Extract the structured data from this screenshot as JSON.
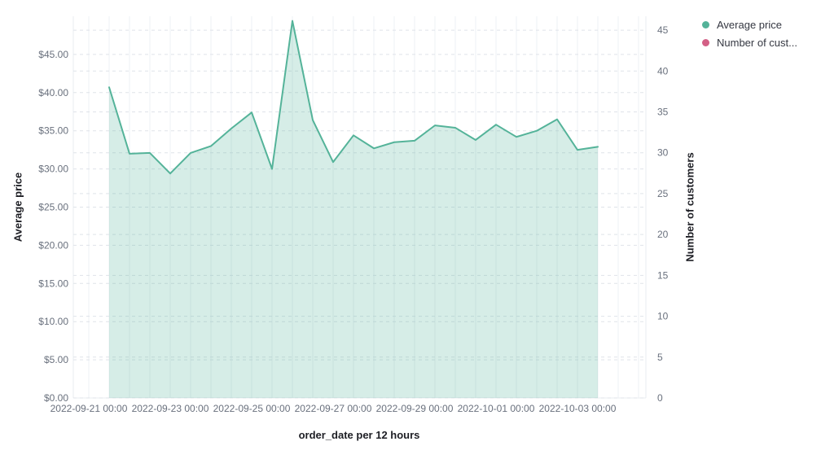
{
  "chart_data": {
    "type": "area",
    "title": "",
    "x": [
      "2022-09-21 12:00",
      "2022-09-22 00:00",
      "2022-09-22 12:00",
      "2022-09-23 00:00",
      "2022-09-23 12:00",
      "2022-09-24 00:00",
      "2022-09-24 12:00",
      "2022-09-25 00:00",
      "2022-09-25 12:00",
      "2022-09-26 00:00",
      "2022-09-26 12:00",
      "2022-09-27 00:00",
      "2022-09-27 12:00",
      "2022-09-28 00:00",
      "2022-09-28 12:00",
      "2022-09-29 00:00",
      "2022-09-29 12:00",
      "2022-09-30 00:00",
      "2022-09-30 12:00",
      "2022-10-01 00:00",
      "2022-10-01 12:00",
      "2022-10-02 00:00",
      "2022-10-02 12:00",
      "2022-10-03 00:00",
      "2022-10-03 12:00"
    ],
    "series": [
      {
        "name": "Average price",
        "axis": "left",
        "color": "#54B399",
        "visible": true,
        "values": [
          40.7,
          32.0,
          32.1,
          29.4,
          32.1,
          33.0,
          35.3,
          37.4,
          30.0,
          49.4,
          36.4,
          30.9,
          34.4,
          32.7,
          33.5,
          33.7,
          35.7,
          35.4,
          33.8,
          35.8,
          34.2,
          35.0,
          36.5,
          32.5,
          32.9
        ]
      },
      {
        "name": "Number of customers",
        "axis": "right",
        "color": "#D36086",
        "visible": false,
        "values": []
      }
    ],
    "x_axis": {
      "title": "order_date per 12 hours",
      "tick_labels": [
        "2022-09-21 00:00",
        "2022-09-23 00:00",
        "2022-09-25 00:00",
        "2022-09-27 00:00",
        "2022-09-29 00:00",
        "2022-10-01 00:00",
        "2022-10-03 00:00"
      ]
    },
    "left_axis": {
      "title": "Average price",
      "range": [
        0,
        50
      ],
      "tick_step": 5,
      "tick_labels": [
        "$0.00",
        "$5.00",
        "$10.00",
        "$15.00",
        "$20.00",
        "$25.00",
        "$30.00",
        "$35.00",
        "$40.00",
        "$45.00"
      ]
    },
    "right_axis": {
      "title": "Number of customers",
      "range": [
        0,
        46.7
      ],
      "tick_step": 5,
      "tick_labels": [
        "0",
        "5",
        "10",
        "15",
        "20",
        "25",
        "30",
        "35",
        "40",
        "45"
      ]
    },
    "grid": {
      "vertical_solid": true,
      "horizontal_dashed": true,
      "legend_position": "top-right"
    }
  },
  "legend": {
    "items": [
      {
        "label": "Average price",
        "color": "#54B399"
      },
      {
        "label": "Number of cust...",
        "color": "#D36086"
      }
    ]
  },
  "colors": {
    "background": "#FFFFFF",
    "line": "#54B399",
    "fill": "rgba(84,179,153,0.24)",
    "grid_vertical": "#edf0f4",
    "grid_dashed": "#dfe3e9",
    "plot_border": "#e9ecf1",
    "tick_text": "#69707D",
    "title_text": "#1D1E24",
    "legend_text": "#343741"
  }
}
